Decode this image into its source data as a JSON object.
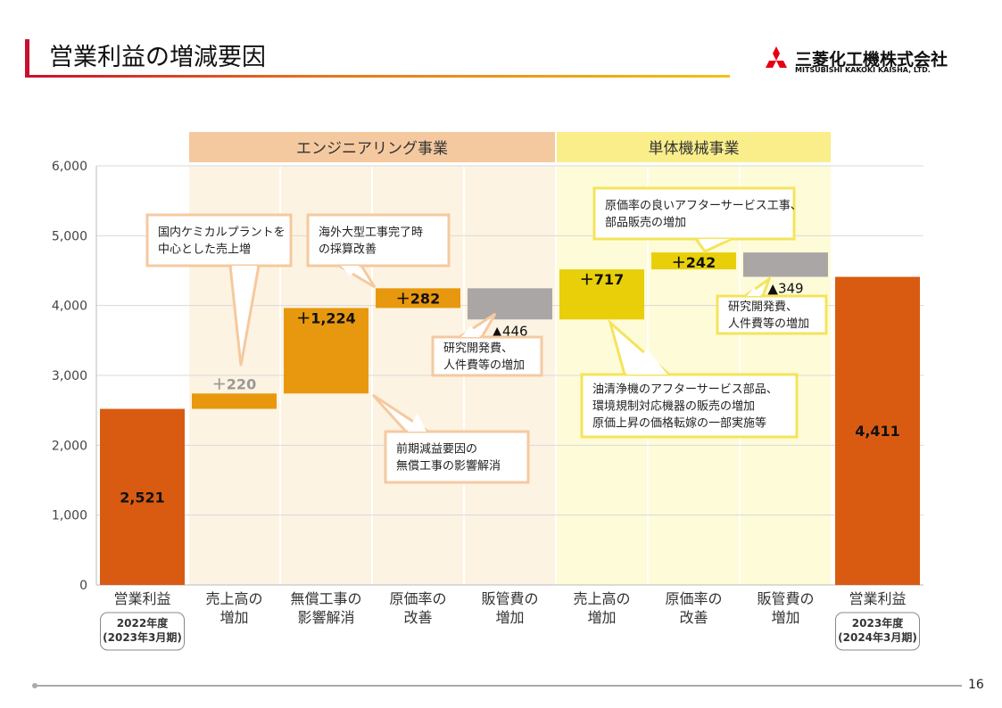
{
  "header": {
    "title": "営業利益の増減要因",
    "logo_jp": "三菱化工機株式会社",
    "logo_en": "MITSUBISHI KAKOKI KAISHA, LTD."
  },
  "page_number": "16",
  "colors": {
    "total": "#d95b12",
    "engineering_up": "#e8980e",
    "unit_up": "#e8cf0a",
    "down": "#aaa6a6",
    "eng_band": "#fdf3e2",
    "eng_header": "#f5c9a0",
    "unit_band": "#fefbd8",
    "unit_header": "#f9ee8a"
  },
  "chart_data": {
    "type": "waterfall",
    "ylim": [
      0,
      6000
    ],
    "yticks": [
      "0",
      "1,000",
      "2,000",
      "3,000",
      "4,000",
      "5,000",
      "6,000"
    ],
    "grid": true,
    "segments": [
      {
        "label": "エンジニアリング事業",
        "from": 1,
        "to": 4
      },
      {
        "label": "単体機械事業",
        "from": 5,
        "to": 7
      }
    ],
    "categories": [
      {
        "lines": [
          "営業利益"
        ],
        "sub": [
          "2022年度",
          "(2023年3月期)"
        ],
        "kind": "total",
        "value": 2521,
        "label": "2,521"
      },
      {
        "lines": [
          "売上高の",
          "増加"
        ],
        "kind": "engineering_up",
        "value": 220,
        "label": "＋220"
      },
      {
        "lines": [
          "無償工事の",
          "影響解消"
        ],
        "kind": "engineering_up",
        "value": 1224,
        "label": "＋1,224"
      },
      {
        "lines": [
          "原価率の",
          "改善"
        ],
        "kind": "engineering_up",
        "value": 282,
        "label": "＋282"
      },
      {
        "lines": [
          "販管費の",
          "増加"
        ],
        "kind": "down",
        "value": -446,
        "label": "▲446"
      },
      {
        "lines": [
          "売上高の",
          "増加"
        ],
        "kind": "unit_up",
        "value": 717,
        "label": "＋717"
      },
      {
        "lines": [
          "原価率の",
          "改善"
        ],
        "kind": "unit_up",
        "value": 242,
        "label": "＋242"
      },
      {
        "lines": [
          "販管費の",
          "増加"
        ],
        "kind": "down",
        "value": -349,
        "label": "▲349"
      },
      {
        "lines": [
          "営業利益"
        ],
        "sub": [
          "2023年度",
          "(2024年3月期)"
        ],
        "kind": "total",
        "value": 4411,
        "label": "4,411"
      }
    ],
    "annotations": [
      {
        "lines": [
          "国内ケミカルプラントを",
          "中心とした売上増"
        ],
        "style": "engineering"
      },
      {
        "lines": [
          "海外大型工事完了時",
          "の採算改善"
        ],
        "style": "engineering"
      },
      {
        "lines": [
          "研究開発費、",
          "人件費等の増加"
        ],
        "style": "engineering"
      },
      {
        "lines": [
          "前期減益要因の",
          "無償工事の影響解消"
        ],
        "style": "engineering"
      },
      {
        "lines": [
          "原価率の良いアフターサービス工事、",
          "部品販売の増加"
        ],
        "style": "unit"
      },
      {
        "lines": [
          "研究開発費、",
          "人件費等の増加"
        ],
        "style": "unit"
      },
      {
        "lines": [
          "油清浄機のアフターサービス部品、",
          "環境規制対応機器の販売の増加",
          "原価上昇の価格転嫁の一部実施等"
        ],
        "style": "unit"
      }
    ]
  }
}
